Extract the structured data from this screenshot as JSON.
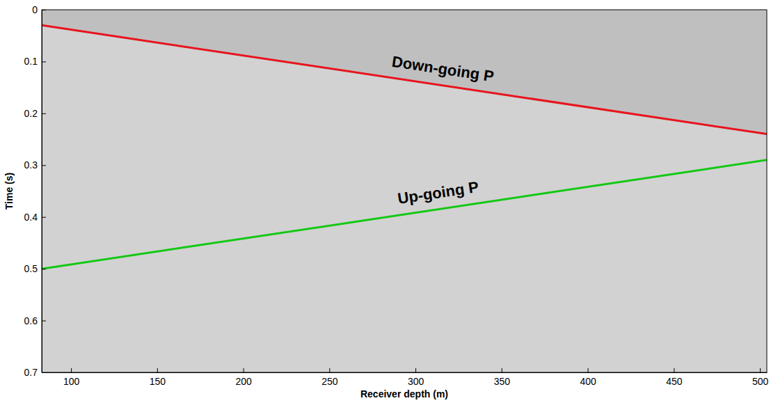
{
  "chart_data": {
    "type": "line",
    "x_label": "Receiver depth (m)",
    "y_label": "Time (s)",
    "x": [
      83,
      504
    ],
    "series": [
      {
        "name": "Down-going P",
        "color": "#e8141c",
        "values": [
          0.03,
          0.24
        ]
      },
      {
        "name": "Up-going P",
        "color": "#14c814",
        "values": [
          0.5,
          0.29
        ]
      }
    ],
    "xlim": [
      83,
      504
    ],
    "xticks": [
      100,
      150,
      200,
      250,
      300,
      350,
      400,
      450,
      500
    ],
    "ylim": [
      0,
      0.7
    ],
    "yticks": [
      0,
      0.1,
      0.2,
      0.3,
      0.4,
      0.5,
      0.6,
      0.7
    ],
    "grid": false
  }
}
